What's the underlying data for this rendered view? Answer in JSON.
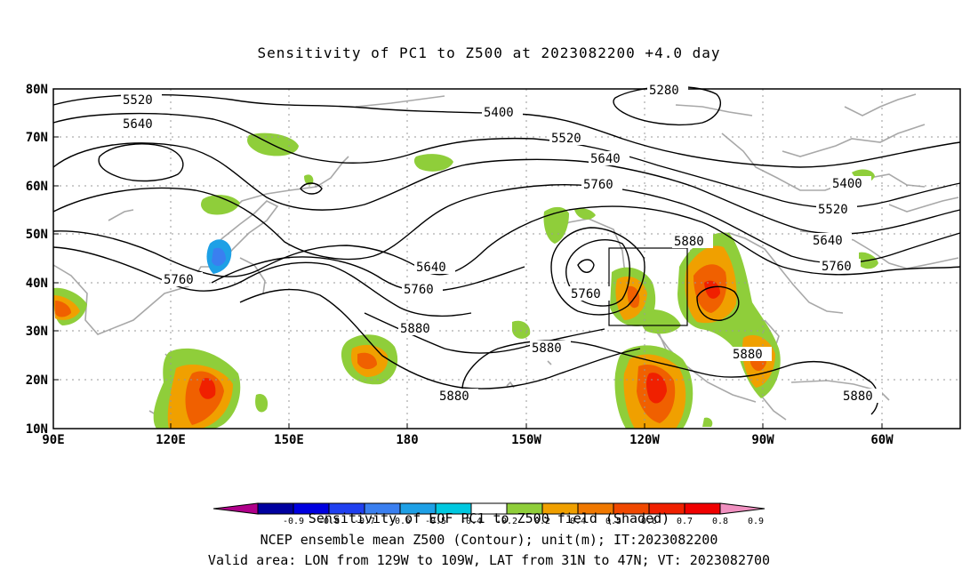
{
  "title": "Sensitivity of PC1 to Z500 at 2023082200 +4.0 day",
  "lat_labels": [
    "80N",
    "70N",
    "60N",
    "50N",
    "40N",
    "30N",
    "20N",
    "10N"
  ],
  "lon_labels": [
    "90E",
    "120E",
    "150E",
    "180",
    "150W",
    "120W",
    "90W",
    "60W"
  ],
  "contour_labels": {
    "c5520a": "5520",
    "c5640a": "5640",
    "c5400a": "5400",
    "c5280a": "5280",
    "c5520b": "5520",
    "c5640b": "5640",
    "c5760a": "5760",
    "c5880a": "5880",
    "c5400b": "5400",
    "c5520c": "5520",
    "c5640c": "5640",
    "c5760b": "5760",
    "c5760c": "5760",
    "c5640d": "5640",
    "c5760d": "5760",
    "c5880b": "5880",
    "c5760e": "5760",
    "c5880c": "5880",
    "c5880d": "5880",
    "c5880e": "5880",
    "c5880f": "5880"
  },
  "colorbar": {
    "ticks": [
      "-0.9",
      "-0.8",
      "-0.7",
      "-0.6",
      "-0.5",
      "-0.4",
      "-0.2",
      "0.2",
      "0.4",
      "0.5",
      "0.6",
      "0.7",
      "0.8",
      "0.9"
    ],
    "colors": [
      "#b0008a",
      "#00009f",
      "#0000e0",
      "#2040f0",
      "#3a7ff0",
      "#1ea0e6",
      "#00c8e0",
      "#ffffff",
      "#8fce3a",
      "#f0a000",
      "#f07800",
      "#f04800",
      "#f02000",
      "#f00000",
      "#f090c0"
    ]
  },
  "captions": {
    "line1": "Sensitivity of EOF PC1 to Z500 field (Shaded)",
    "line2": "NCEP ensemble mean Z500 (Contour); unit(m); IT:2023082200",
    "line3": "Valid area: LON from 129W to 109W, LAT from 31N to 47N; VT: 2023082700"
  },
  "box": {
    "lon_from": "129W",
    "lon_to": "109W",
    "lat_from": "31N",
    "lat_to": "47N"
  }
}
